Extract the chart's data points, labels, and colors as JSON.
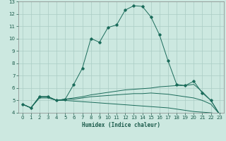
{
  "title": "",
  "xlabel": "Humidex (Indice chaleur)",
  "xlim": [
    -0.5,
    23.5
  ],
  "ylim": [
    4,
    13
  ],
  "yticks": [
    4,
    5,
    6,
    7,
    8,
    9,
    10,
    11,
    12,
    13
  ],
  "xticks": [
    0,
    1,
    2,
    3,
    4,
    5,
    6,
    7,
    8,
    9,
    10,
    11,
    12,
    13,
    14,
    15,
    16,
    17,
    18,
    19,
    20,
    21,
    22,
    23
  ],
  "bg_color": "#cce8e0",
  "grid_color": "#aaccc4",
  "line_color": "#1a6b5a",
  "curves": [
    {
      "x": [
        0,
        1,
        2,
        3,
        4,
        5,
        6,
        7,
        8,
        9,
        10,
        11,
        12,
        13,
        14,
        15,
        16,
        17,
        18,
        19,
        20,
        21,
        22,
        23
      ],
      "y": [
        4.7,
        4.4,
        5.3,
        5.3,
        5.0,
        5.1,
        6.3,
        7.6,
        10.0,
        9.7,
        10.9,
        11.1,
        12.3,
        12.65,
        12.6,
        11.75,
        10.3,
        8.2,
        6.3,
        6.2,
        6.55,
        5.6,
        5.0,
        3.9
      ],
      "marker": true
    },
    {
      "x": [
        0,
        1,
        2,
        3,
        4,
        5,
        6,
        7,
        8,
        9,
        10,
        11,
        12,
        13,
        14,
        15,
        16,
        17,
        18,
        19,
        20,
        21,
        22,
        23
      ],
      "y": [
        4.7,
        4.4,
        5.3,
        5.3,
        5.0,
        5.1,
        5.2,
        5.3,
        5.45,
        5.55,
        5.65,
        5.75,
        5.85,
        5.9,
        5.95,
        6.0,
        6.1,
        6.15,
        6.2,
        6.2,
        6.3,
        5.7,
        5.0,
        3.9
      ],
      "marker": false
    },
    {
      "x": [
        0,
        1,
        2,
        3,
        4,
        5,
        6,
        7,
        8,
        9,
        10,
        11,
        12,
        13,
        14,
        15,
        16,
        17,
        18,
        19,
        20,
        21,
        22,
        23
      ],
      "y": [
        4.7,
        4.4,
        5.3,
        5.3,
        5.0,
        5.1,
        5.1,
        5.2,
        5.3,
        5.35,
        5.4,
        5.45,
        5.5,
        5.55,
        5.55,
        5.6,
        5.55,
        5.5,
        5.4,
        5.3,
        5.2,
        5.0,
        4.7,
        3.9
      ],
      "marker": false
    },
    {
      "x": [
        0,
        1,
        2,
        3,
        4,
        5,
        6,
        7,
        8,
        9,
        10,
        11,
        12,
        13,
        14,
        15,
        16,
        17,
        18,
        19,
        20,
        21,
        22,
        23
      ],
      "y": [
        4.7,
        4.4,
        5.2,
        5.2,
        5.0,
        5.0,
        4.95,
        4.9,
        4.85,
        4.8,
        4.75,
        4.7,
        4.65,
        4.6,
        4.55,
        4.5,
        4.45,
        4.4,
        4.3,
        4.2,
        4.1,
        4.05,
        4.0,
        3.9
      ],
      "marker": false
    }
  ]
}
